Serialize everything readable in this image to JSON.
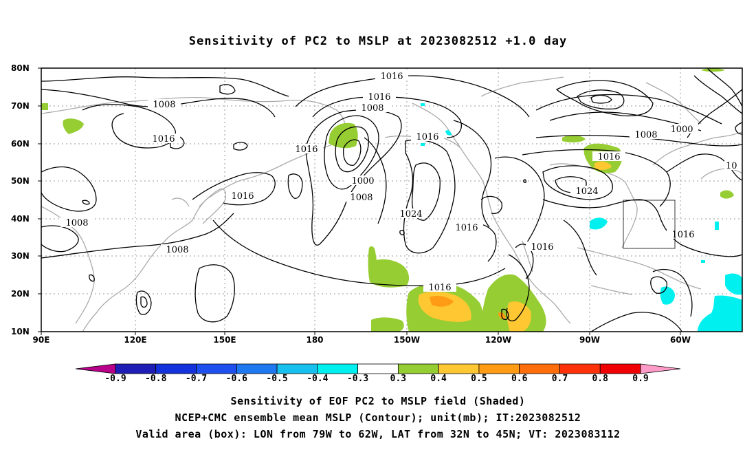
{
  "title": "Sensitivity of PC2 to MSLP at 2023082512 +1.0 day",
  "lat_labels": [
    "80N",
    "70N",
    "60N",
    "50N",
    "40N",
    "30N",
    "20N",
    "10N"
  ],
  "lon_labels": [
    "90E",
    "120E",
    "150E",
    "180",
    "150W",
    "120W",
    "90W",
    "60W"
  ],
  "contour_labels": [
    "1016",
    "1016",
    "1008",
    "1008",
    "1016",
    "1016",
    "1016",
    "1000",
    "1008",
    "1008",
    "1016",
    "1024",
    "1016",
    "1008",
    "1016",
    "1016",
    "1024",
    "1000",
    "1008",
    "1016",
    "1016",
    "10"
  ],
  "colorbar": {
    "labels": [
      "-0.9",
      "-0.8",
      "-0.7",
      "-0.6",
      "-0.5",
      "-0.4",
      "-0.3",
      "0.3",
      "0.4",
      "0.5",
      "0.6",
      "0.7",
      "0.8",
      "0.9"
    ],
    "colors": [
      "#b8008a",
      "#1e1eb4",
      "#1432dc",
      "#1e50f0",
      "#1e78f0",
      "#18c0f0",
      "#00f0f0",
      "#ffffff",
      "#96cd32",
      "#ffc832",
      "#ff9b14",
      "#ff6e0a",
      "#ff320a",
      "#f00000",
      "#ff9bc8"
    ]
  },
  "captions": [
    "Sensitivity of EOF PC2 to MSLP field (Shaded)",
    "NCEP+CMC ensemble mean MSLP (Contour); unit(mb); IT:2023082512",
    "Valid area (box): LON from 79W to 62W, LAT from 32N to 45N; VT: 2023083112"
  ],
  "valid_box": {
    "lon_min": "79W",
    "lon_max": "62W",
    "lat_min": "32N",
    "lat_max": "45N"
  }
}
